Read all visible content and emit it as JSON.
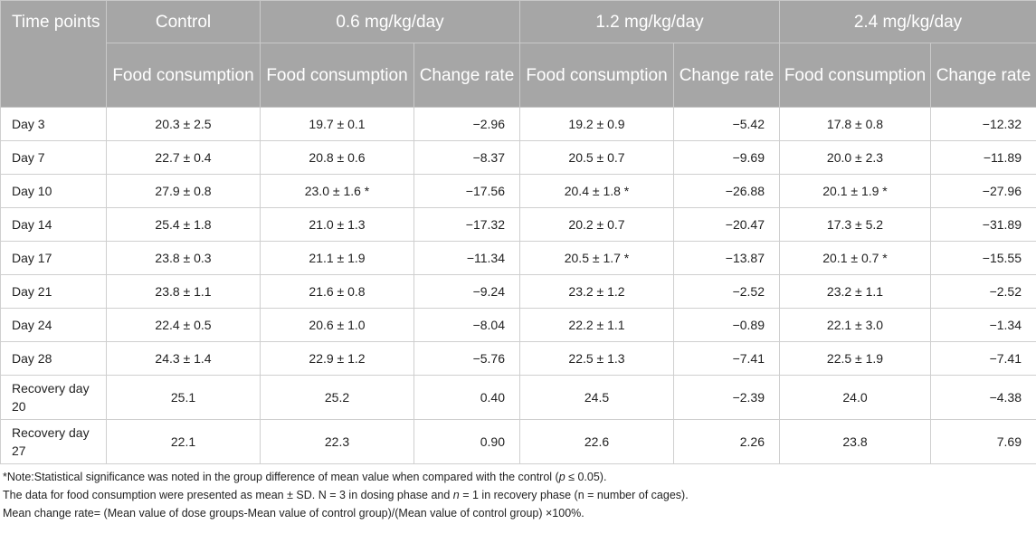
{
  "header": {
    "time_points": "Time points",
    "groups": [
      "Control",
      "0.6 mg/kg/day",
      "1.2 mg/kg/day",
      "2.4 mg/kg/day"
    ],
    "food_consumption": "Food consumption",
    "change_rate": "Change rate"
  },
  "rows": [
    {
      "label": "Day 3",
      "control": "20.3 ± 2.5",
      "g1_food": "19.7 ± 0.1",
      "g1_rate": "−2.96",
      "g2_food": "19.2 ± 0.9",
      "g2_rate": "−5.42",
      "g3_food": "17.8 ± 0.8",
      "g3_rate": "−12.32"
    },
    {
      "label": "Day 7",
      "control": "22.7 ± 0.4",
      "g1_food": "20.8 ± 0.6",
      "g1_rate": "−8.37",
      "g2_food": "20.5 ± 0.7",
      "g2_rate": "−9.69",
      "g3_food": "20.0 ± 2.3",
      "g3_rate": "−11.89"
    },
    {
      "label": "Day 10",
      "control": "27.9 ± 0.8",
      "g1_food": "23.0 ± 1.6 *",
      "g1_rate": "−17.56",
      "g2_food": "20.4 ± 1.8 *",
      "g2_rate": "−26.88",
      "g3_food": "20.1 ± 1.9 *",
      "g3_rate": "−27.96"
    },
    {
      "label": "Day 14",
      "control": "25.4 ± 1.8",
      "g1_food": "21.0 ± 1.3",
      "g1_rate": "−17.32",
      "g2_food": "20.2 ± 0.7",
      "g2_rate": "−20.47",
      "g3_food": "17.3 ± 5.2",
      "g3_rate": "−31.89"
    },
    {
      "label": "Day 17",
      "control": "23.8 ± 0.3",
      "g1_food": "21.1 ± 1.9",
      "g1_rate": "−11.34",
      "g2_food": "20.5 ± 1.7 *",
      "g2_rate": "−13.87",
      "g3_food": "20.1 ± 0.7 *",
      "g3_rate": "−15.55"
    },
    {
      "label": "Day 21",
      "control": "23.8 ± 1.1",
      "g1_food": "21.6 ± 0.8",
      "g1_rate": "−9.24",
      "g2_food": "23.2 ± 1.2",
      "g2_rate": "−2.52",
      "g3_food": "23.2 ± 1.1",
      "g3_rate": "−2.52"
    },
    {
      "label": "Day 24",
      "control": "22.4 ± 0.5",
      "g1_food": "20.6 ± 1.0",
      "g1_rate": "−8.04",
      "g2_food": "22.2 ± 1.1",
      "g2_rate": "−0.89",
      "g3_food": "22.1 ± 3.0",
      "g3_rate": "−1.34"
    },
    {
      "label": "Day 28",
      "control": "24.3 ± 1.4",
      "g1_food": "22.9 ± 1.2",
      "g1_rate": "−5.76",
      "g2_food": "22.5 ± 1.3",
      "g2_rate": "−7.41",
      "g3_food": "22.5 ± 1.9",
      "g3_rate": "−7.41"
    },
    {
      "label": "Recovery day 20",
      "control": "25.1",
      "g1_food": "25.2",
      "g1_rate": "0.40",
      "g2_food": "24.5",
      "g2_rate": "−2.39",
      "g3_food": "24.0",
      "g3_rate": "−4.38"
    },
    {
      "label": "Recovery day 27",
      "control": "22.1",
      "g1_food": "22.3",
      "g1_rate": "0.90",
      "g2_food": "22.6",
      "g2_rate": "2.26",
      "g3_food": "23.8",
      "g3_rate": "7.69"
    }
  ],
  "notes": {
    "note1_a": "*Note:Statistical significance was noted in the group difference of mean value when compared with the control (",
    "note1_p": "p",
    "note1_b": " ≤ 0.05).",
    "note2_a": "The data for food consumption were presented as mean ± SD. N = 3 in dosing phase and ",
    "note2_n": "n",
    "note2_b": " = 1 in recovery phase (n = number of cages).",
    "note3": "Mean change rate= (Mean value of dose groups-Mean value of control group)/(Mean value of control group) ×100%."
  }
}
